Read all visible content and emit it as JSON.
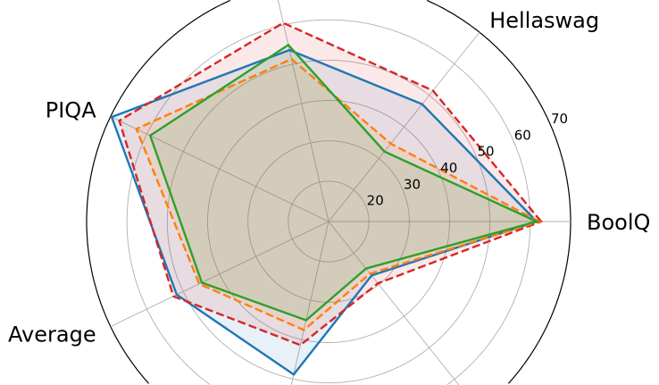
{
  "chart_data": {
    "type": "radar",
    "categories": [
      "BoolQ",
      "Hellaswag",
      "",
      "PIQA",
      "Average",
      "",
      ""
    ],
    "rlim": [
      10,
      70
    ],
    "rticks": [
      20,
      30,
      40,
      50,
      60,
      70
    ],
    "rtick_labels": [
      "20",
      "30",
      "40",
      "50",
      "60",
      "70"
    ],
    "grid": true,
    "series": [
      {
        "color": "#1f77b4",
        "linestyle": "solid",
        "values": [
          61.6,
          47.2,
          53.6,
          69.7,
          51.8,
          48.9,
          27.1
        ]
      },
      {
        "color": "#d62728",
        "linestyle": "dashed",
        "values": [
          62.7,
          51.5,
          60.5,
          67.6,
          52.7,
          41.4,
          29.6
        ]
      },
      {
        "color": "#ff7f0e",
        "linestyle": "dashed",
        "values": [
          62.2,
          34.7,
          51.3,
          62.9,
          45.6,
          37.6,
          26.5
        ]
      },
      {
        "color": "#2ca02c",
        "linestyle": "solid",
        "values": [
          61.6,
          32.2,
          54.9,
          59.1,
          44.9,
          35.1,
          24.9
        ]
      }
    ]
  }
}
